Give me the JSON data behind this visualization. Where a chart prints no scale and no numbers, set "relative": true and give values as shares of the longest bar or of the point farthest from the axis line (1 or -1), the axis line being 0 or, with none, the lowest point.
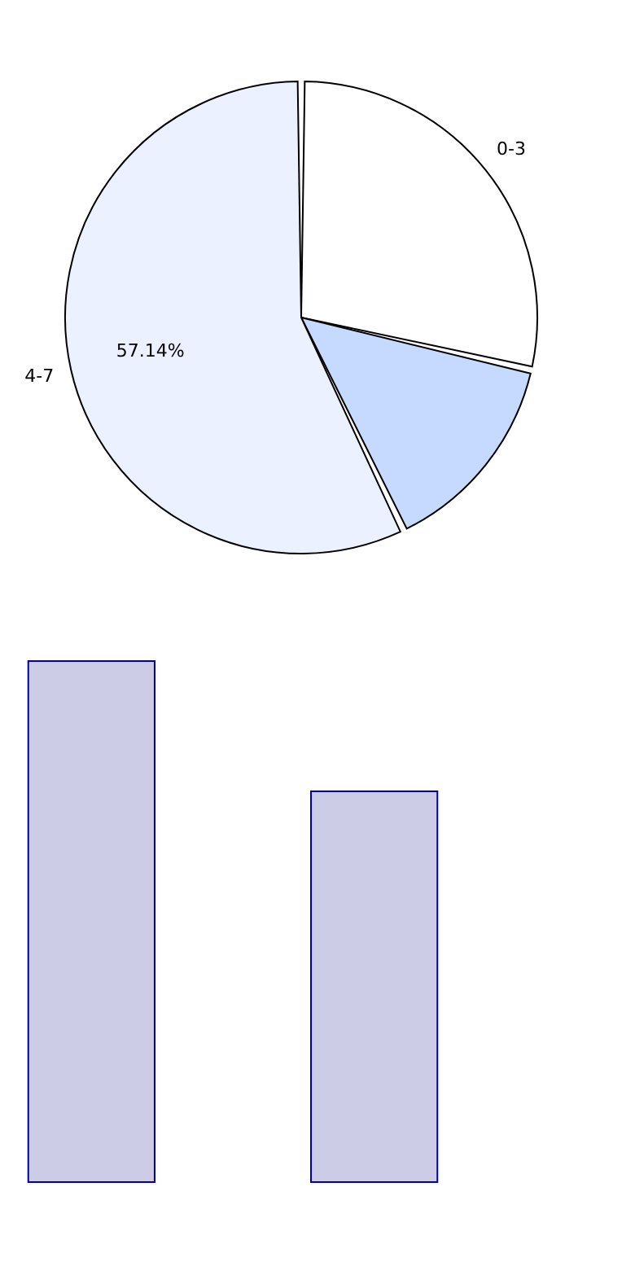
{
  "chart_data": [
    {
      "type": "pie",
      "categories": [
        "0-3",
        null,
        "4-7"
      ],
      "values": [
        28.57,
        14.29,
        57.14
      ],
      "colors": [
        "#ffffff",
        "#c6d9fe",
        "#ebf1fe"
      ],
      "value_labels": [
        null,
        null,
        "57.14%"
      ]
    },
    {
      "type": "bar",
      "relative": true,
      "categories": [
        null,
        null
      ],
      "values": [
        1,
        0.75
      ],
      "color": "#cccce6"
    }
  ]
}
